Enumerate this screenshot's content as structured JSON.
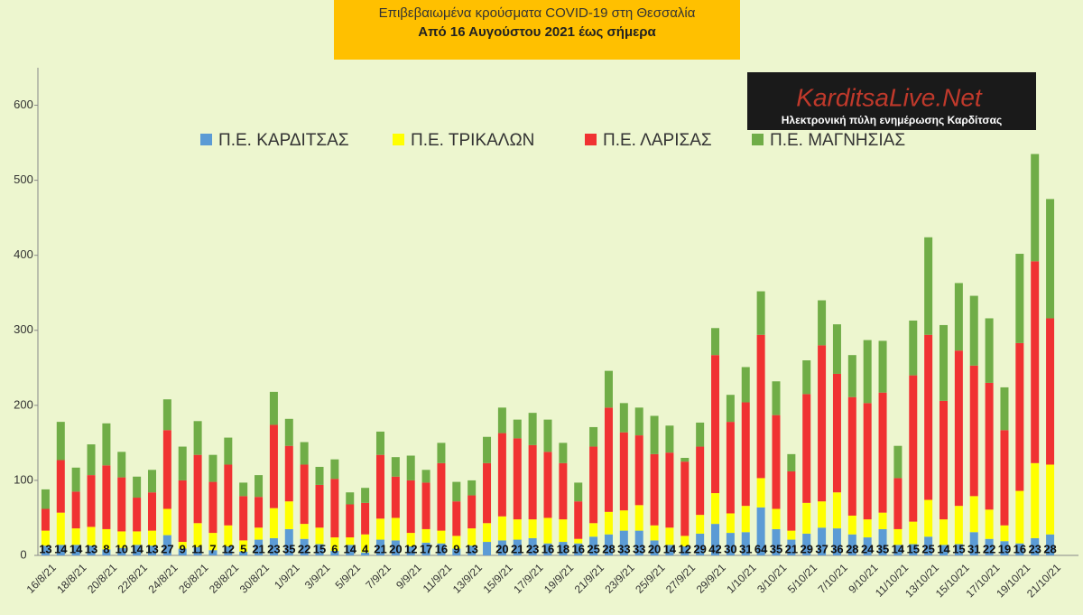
{
  "chart_data": {
    "type": "stacked_bar",
    "title": "Επιβεβαιωμένα κρούσματα COVID-19 στη Θεσσαλία",
    "subtitle": "Από 16 Αυγούστου 2021 έως σήμερα",
    "annotations": [
      "KarditsaLive.Net",
      "Ηλεκτρονική πύλη ενημέρωσης Καρδίτσας"
    ],
    "categories": [
      "16/8/21",
      null,
      "18/8/21",
      null,
      "20/8/21",
      null,
      "22/8/21",
      null,
      "24/8/21",
      null,
      "26/8/21",
      null,
      "28/8/21",
      null,
      "30/8/21",
      null,
      "1/9/21",
      null,
      "3/9/21",
      null,
      "5/9/21",
      null,
      "7/9/21",
      null,
      "9/9/21",
      null,
      "11/9/21",
      null,
      "13/9/21",
      null,
      "15/9/21",
      null,
      "17/9/21",
      null,
      "19/9/21",
      null,
      "21/9/21",
      null,
      "23/9/21",
      null,
      "25/9/21",
      null,
      "27/9/21",
      null,
      "29/9/21",
      null,
      "1/10/21",
      null,
      "3/10/21",
      null,
      "5/10/21",
      null,
      "7/10/21",
      null,
      "9/10/21",
      null,
      "11/10/21",
      null,
      "13/10/21",
      null,
      "15/10/21",
      null,
      "17/10/21",
      null,
      "19/10/21",
      null,
      "21/10/21"
    ],
    "series": [
      {
        "name": "Π.Ε. ΚΑΡΔΙΤΣΑΣ",
        "color": "#5b9bd5",
        "values": [
          13,
          14,
          14,
          13,
          8,
          10,
          14,
          13,
          27,
          9,
          11,
          7,
          12,
          5,
          21,
          23,
          35,
          22,
          15,
          6,
          14,
          4,
          21,
          20,
          12,
          17,
          16,
          9,
          13,
          18,
          20,
          21,
          23,
          16,
          18,
          16,
          25,
          28,
          33,
          33,
          20,
          14,
          12,
          29,
          42,
          30,
          31,
          64,
          35,
          21,
          29,
          37,
          36,
          28,
          24,
          35,
          14,
          15,
          25,
          14,
          15,
          31,
          22,
          19,
          16,
          23,
          28
        ],
        "value_labels": [
          "13",
          "14",
          "14",
          "13",
          "8",
          "10",
          "14",
          "13",
          "27",
          "9",
          "11",
          "7",
          "12",
          "5",
          "21",
          "23",
          "35",
          "22",
          "15",
          "6",
          "14",
          "4",
          "21",
          "20",
          "12",
          "17",
          "16",
          "9",
          "13",
          null,
          "20",
          "21",
          "23",
          "16",
          "18",
          "16",
          "25",
          "28",
          "33",
          "33",
          "20",
          "14",
          "12",
          "29",
          "42",
          "30",
          "31",
          "64",
          "35",
          "21",
          "29",
          "37",
          "36",
          "28",
          "24",
          "35",
          "14",
          "15",
          "25",
          "14",
          "15",
          "31",
          "22",
          "19",
          "16",
          "23",
          "28"
        ]
      },
      {
        "name": "Π.Ε. ΤΡΙΚΑΛΩΝ",
        "color": "#ffff00",
        "values": [
          20,
          43,
          22,
          25,
          27,
          22,
          18,
          20,
          35,
          9,
          32,
          23,
          28,
          15,
          16,
          40,
          37,
          20,
          22,
          18,
          10,
          24,
          28,
          30,
          18,
          18,
          17,
          17,
          23,
          25,
          32,
          27,
          25,
          34,
          30,
          6,
          18,
          30,
          27,
          34,
          20,
          23,
          14,
          25,
          41,
          26,
          35,
          39,
          27,
          12,
          41,
          35,
          48,
          25,
          24,
          22,
          21,
          30,
          49,
          34,
          51,
          48,
          39,
          21,
          70,
          100,
          93
        ]
      },
      {
        "name": "Π.Ε. ΛΑΡΙΣΑΣ",
        "color": "#f03232",
        "values": [
          29,
          70,
          49,
          69,
          85,
          72,
          45,
          51,
          105,
          82,
          91,
          68,
          81,
          59,
          41,
          111,
          74,
          79,
          57,
          78,
          44,
          42,
          85,
          55,
          70,
          62,
          90,
          46,
          44,
          80,
          111,
          108,
          99,
          88,
          75,
          50,
          102,
          139,
          104,
          93,
          95,
          100,
          99,
          91,
          184,
          122,
          138,
          191,
          125,
          79,
          145,
          208,
          158,
          158,
          155,
          160,
          68,
          195,
          220,
          158,
          207,
          174,
          169,
          127,
          197,
          269,
          195
        ]
      },
      {
        "name": "Π.Ε. ΜΑΓΝΗΣΙΑΣ",
        "color": "#70ad47",
        "values": [
          26,
          51,
          32,
          41,
          56,
          34,
          28,
          30,
          41,
          45,
          45,
          36,
          36,
          18,
          29,
          44,
          36,
          30,
          24,
          26,
          16,
          20,
          31,
          26,
          33,
          17,
          27,
          26,
          20,
          35,
          34,
          25,
          43,
          43,
          27,
          25,
          26,
          49,
          39,
          37,
          51,
          36,
          5,
          32,
          36,
          36,
          47,
          58,
          45,
          23,
          45,
          60,
          66,
          56,
          84,
          69,
          43,
          73,
          130,
          101,
          90,
          93,
          86,
          57,
          119,
          143,
          159
        ]
      }
    ],
    "ylim": [
      0,
      650
    ],
    "yticks": [
      0,
      100,
      200,
      300,
      400,
      500,
      600
    ],
    "grid": false
  }
}
